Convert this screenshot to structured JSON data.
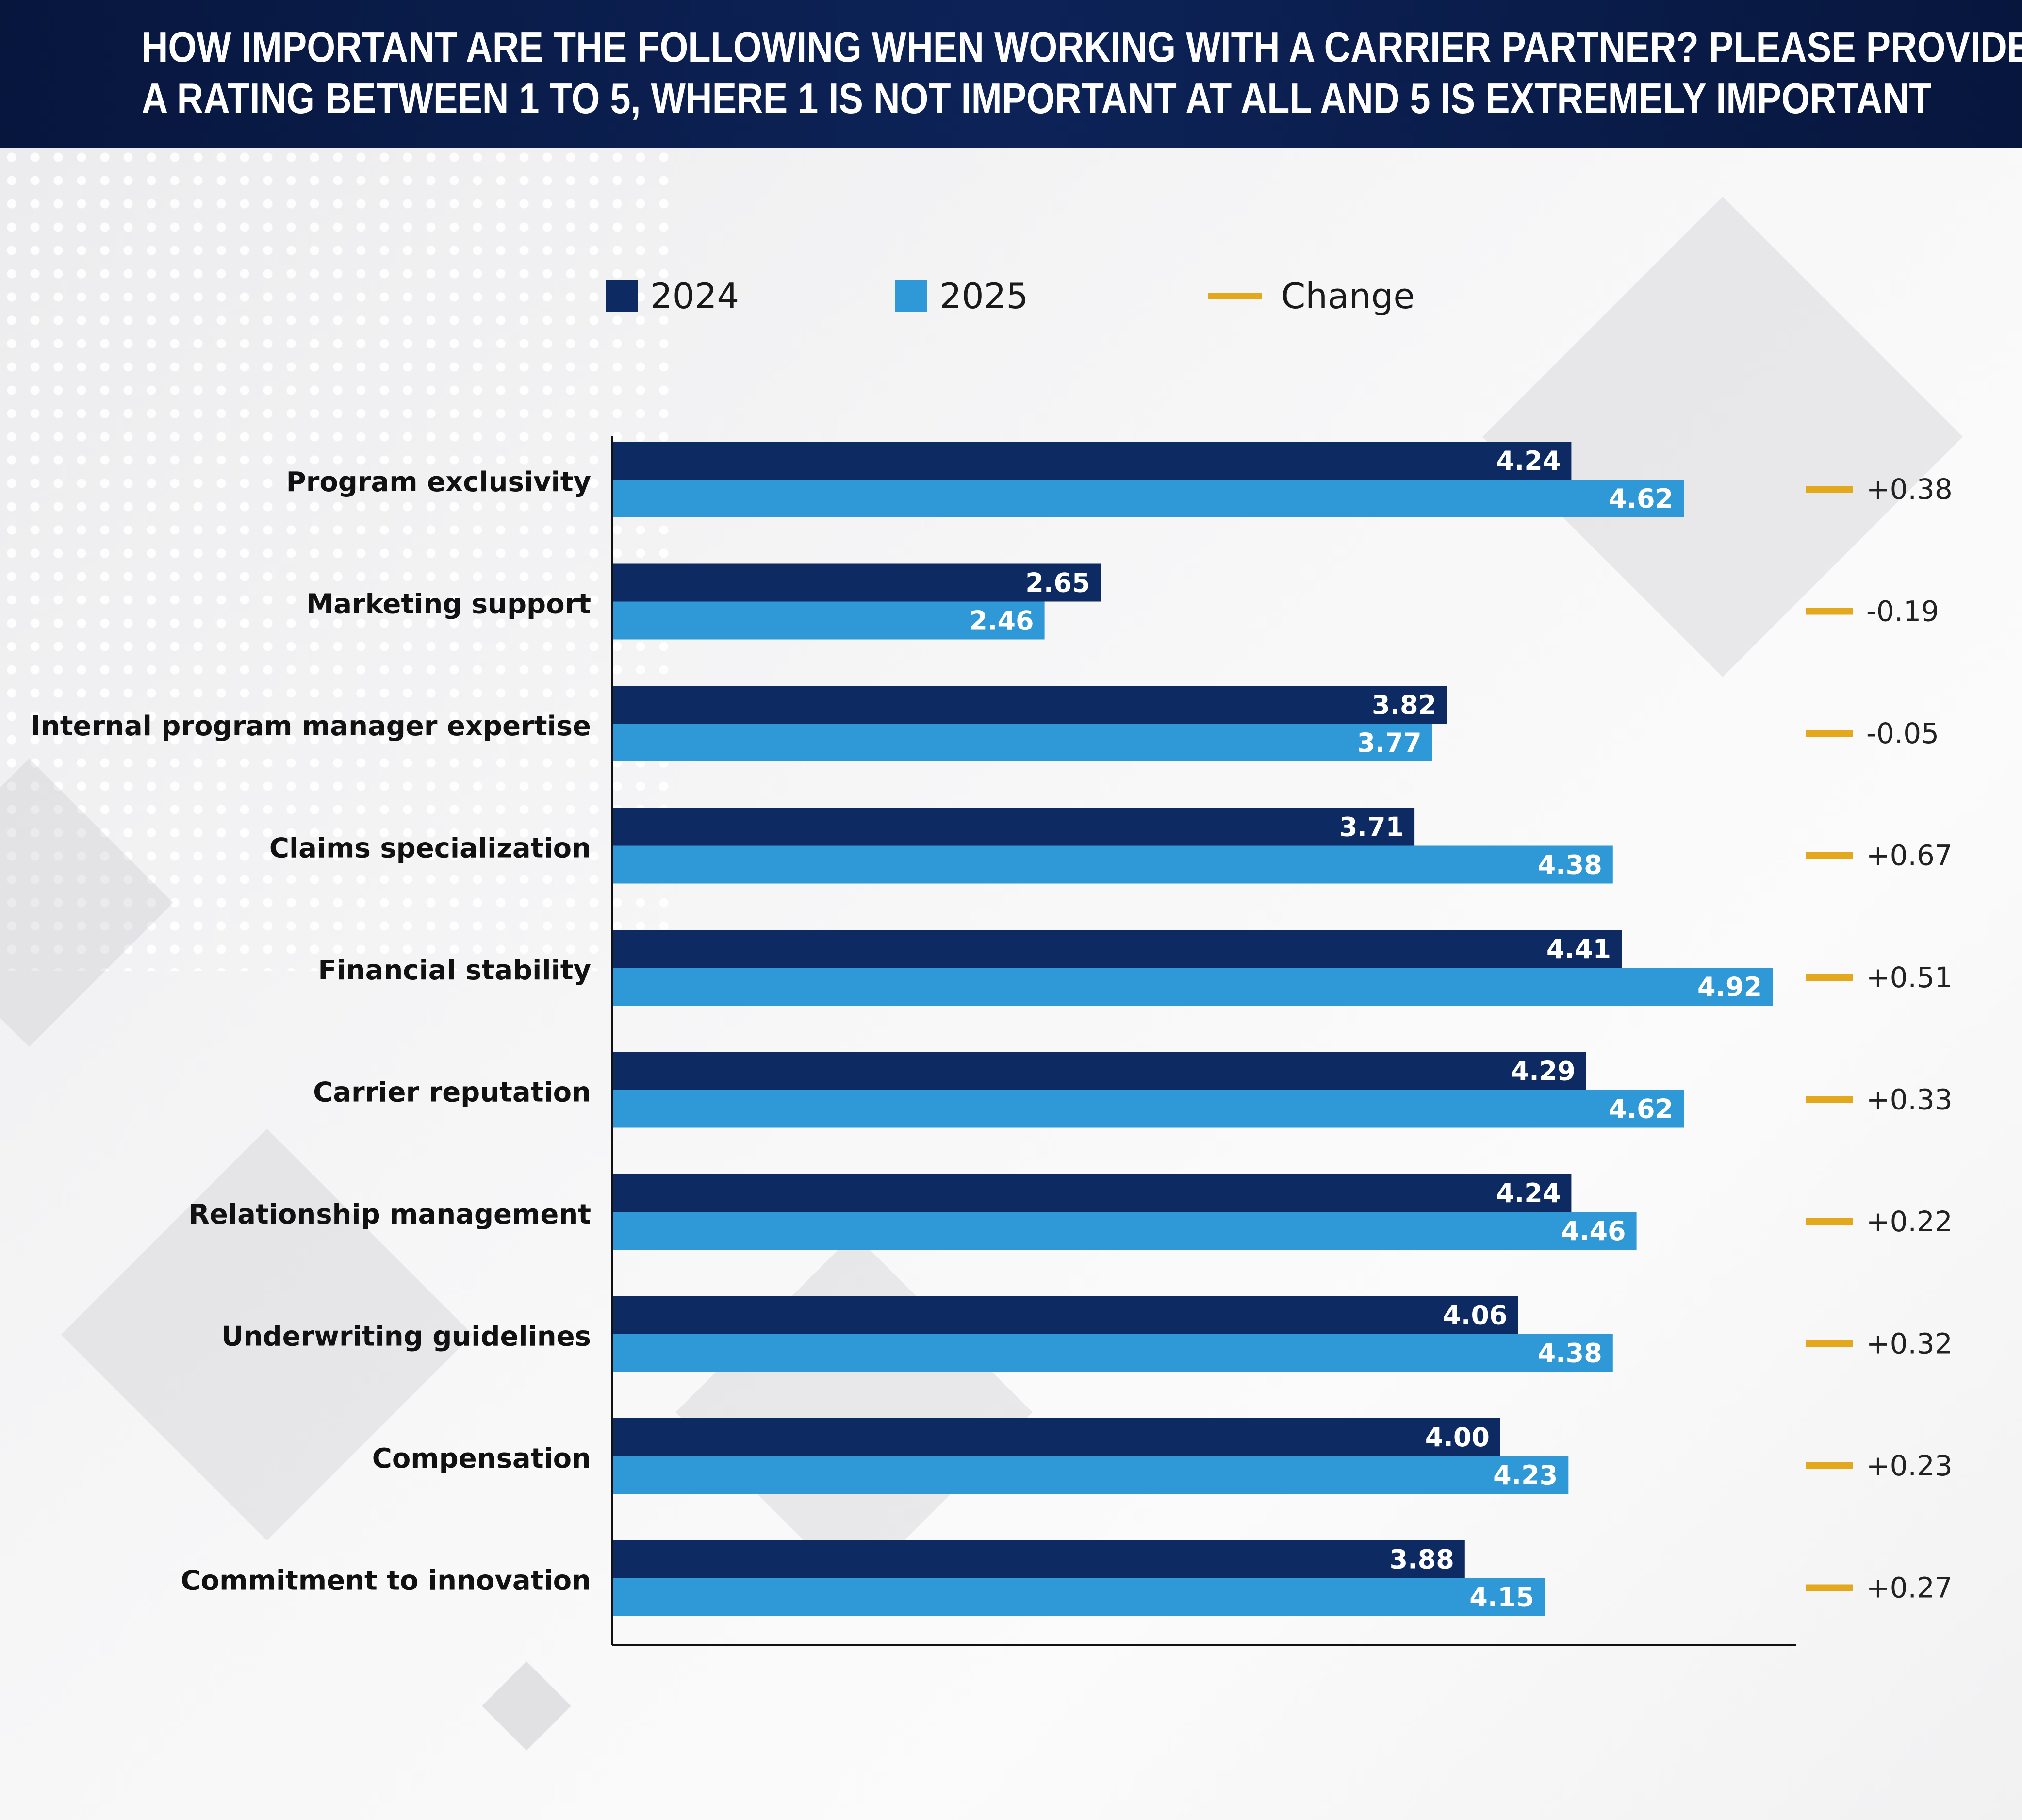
{
  "title_lines": [
    "HOW IMPORTANT ARE THE FOLLOWING WHEN WORKING WITH A CARRIER PARTNER? PLEASE PROVIDE",
    "A RATING BETWEEN 1 TO 5, WHERE 1 IS NOT IMPORTANT AT ALL AND 5 IS EXTREMELY IMPORTANT"
  ],
  "legend": {
    "series_2024": "2024",
    "series_2025": "2025",
    "change": "Change"
  },
  "colors": {
    "series_2024": "#0d2a63",
    "series_2025": "#2f98d6",
    "change": "#e4a81c",
    "header": "#0b1e4d"
  },
  "chart_data": {
    "type": "bar",
    "orientation": "horizontal",
    "title": "HOW IMPORTANT ARE THE FOLLOWING WHEN WORKING WITH A CARRIER PARTNER? PLEASE PROVIDE A RATING BETWEEN 1 TO 5, WHERE 1 IS NOT IMPORTANT AT ALL AND 5 IS EXTREMELY IMPORTANT",
    "categories": [
      "Program exclusivity",
      "Marketing support",
      "Internal program manager expertise",
      "Claims specialization",
      "Financial stability",
      "Carrier reputation",
      "Relationship management",
      "Underwriting guidelines",
      "Compensation",
      "Commitment to innovation"
    ],
    "series": [
      {
        "name": "2024",
        "values": [
          4.24,
          2.65,
          3.82,
          3.71,
          4.41,
          4.29,
          4.24,
          4.06,
          4.0,
          3.88
        ],
        "labels": [
          "4.24",
          "2.65",
          "3.82",
          "3.71",
          "4.41",
          "4.29",
          "4.24",
          "4.06",
          "4.00",
          "3.88"
        ]
      },
      {
        "name": "2025",
        "values": [
          4.62,
          2.46,
          3.77,
          4.38,
          4.92,
          4.62,
          4.46,
          4.38,
          4.23,
          4.15
        ],
        "labels": [
          "4.62",
          "2.46",
          "3.77",
          "4.38",
          "4.92",
          "4.62",
          "4.46",
          "4.38",
          "4.23",
          "4.15"
        ]
      }
    ],
    "change": {
      "name": "Change",
      "values": [
        0.38,
        -0.19,
        -0.05,
        0.67,
        0.51,
        0.33,
        0.22,
        0.32,
        0.23,
        0.27
      ],
      "labels": [
        "+0.38",
        "-0.19",
        "-0.05",
        "+0.67",
        "+0.51",
        "+0.33",
        "+0.22",
        "+0.32",
        "+0.23",
        "+0.27"
      ]
    },
    "xlim": [
      1,
      5
    ],
    "grid": false,
    "legend_position": "top"
  }
}
